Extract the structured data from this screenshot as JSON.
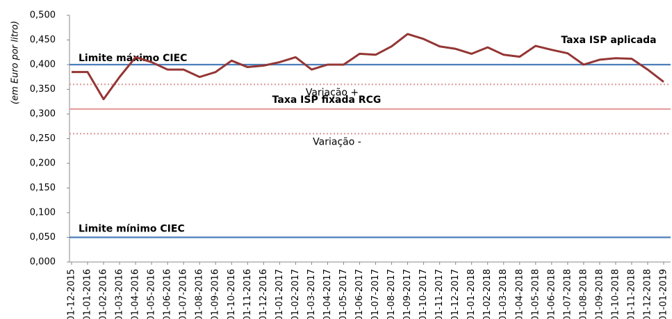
{
  "chart_data": {
    "type": "line",
    "y_label": "(em Euro por litro)",
    "categories": [
      "01-12-2015",
      "01-01-2016",
      "01-02-2016",
      "01-03-2016",
      "01-04-2016",
      "01-05-2016",
      "01-06-2016",
      "01-07-2016",
      "01-08-2016",
      "01-09-2016",
      "01-10-2016",
      "01-11-2016",
      "01-12-2016",
      "01-01-2017",
      "01-02-2017",
      "01-03-2017",
      "01-04-2017",
      "01-05-2017",
      "01-06-2017",
      "01-07-2017",
      "01-08-2017",
      "01-09-2017",
      "01-10-2017",
      "01-11-2017",
      "01-12-2017",
      "01-01-2018",
      "01-02-2018",
      "01-03-2018",
      "01-04-2018",
      "01-05-2018",
      "01-06-2018",
      "01-07-2018",
      "01-08-2018",
      "01-09-2018",
      "01-10-2018",
      "01-11-2018",
      "01-12-2018",
      "01-01-2019"
    ],
    "series": [
      {
        "name": "Taxa ISP aplicada",
        "color": "#943634",
        "values": [
          0.385,
          0.385,
          0.33,
          0.375,
          0.415,
          0.405,
          0.39,
          0.39,
          0.375,
          0.385,
          0.408,
          0.395,
          0.398,
          0.405,
          0.415,
          0.39,
          0.4,
          0.4,
          0.422,
          0.42,
          0.437,
          0.462,
          0.452,
          0.437,
          0.432,
          0.422,
          0.435,
          0.42,
          0.416,
          0.438,
          0.43,
          0.423,
          0.4,
          0.41,
          0.413,
          0.412,
          0.39,
          0.365
        ]
      }
    ],
    "reference_lines": [
      {
        "label": "Limite máximo CIEC",
        "value": 0.4,
        "color": "#4a7ebb",
        "style": "solid"
      },
      {
        "label": "Variação +",
        "value": 0.36,
        "color": "#d99594",
        "style": "dotted"
      },
      {
        "label": "Taxa ISP fixada RCG",
        "value": 0.31,
        "color": "#e6a0a0",
        "style": "solid"
      },
      {
        "label": "Variação -",
        "value": 0.26,
        "color": "#d99594",
        "style": "dotted"
      },
      {
        "label": "Limite mínimo CIEC",
        "value": 0.05,
        "color": "#4a7ebb",
        "style": "solid"
      }
    ],
    "ylim": [
      0,
      0.5
    ],
    "yticks": [
      {
        "value": 0,
        "label": "0,000"
      },
      {
        "value": 0.05,
        "label": "0,050"
      },
      {
        "value": 0.1,
        "label": "0,100"
      },
      {
        "value": 0.15,
        "label": "0,150"
      },
      {
        "value": 0.2,
        "label": "0,200"
      },
      {
        "value": 0.25,
        "label": "0,250"
      },
      {
        "value": 0.3,
        "label": "0,300"
      },
      {
        "value": 0.35,
        "label": "0,350"
      },
      {
        "value": 0.4,
        "label": "0,400"
      },
      {
        "value": 0.45,
        "label": "0,450"
      },
      {
        "value": 0.5,
        "label": "0,500"
      }
    ]
  }
}
